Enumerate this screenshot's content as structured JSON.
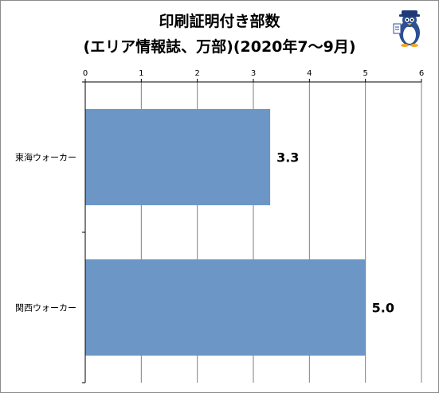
{
  "chart_data": {
    "type": "bar",
    "orientation": "horizontal",
    "title": "印刷証明付き部数",
    "subtitle": "(エリア情報誌、万部)(2020年7～9月)",
    "categories": [
      "東海ウォーカー",
      "関西ウォーカー"
    ],
    "values": [
      3.3,
      5.0
    ],
    "data_labels": [
      "3.3",
      "5.0"
    ],
    "xlim": [
      0,
      6
    ],
    "x_ticks": [
      "0",
      "1",
      "2",
      "3",
      "4",
      "5",
      "6"
    ],
    "xlabel": "",
    "ylabel": "",
    "grid": true,
    "axis_position": "top",
    "legend": "none",
    "bar_color": "#6b96c6",
    "grid_color": "#7f7f7f"
  },
  "mascot_icon": "penguin-mascot-icon"
}
